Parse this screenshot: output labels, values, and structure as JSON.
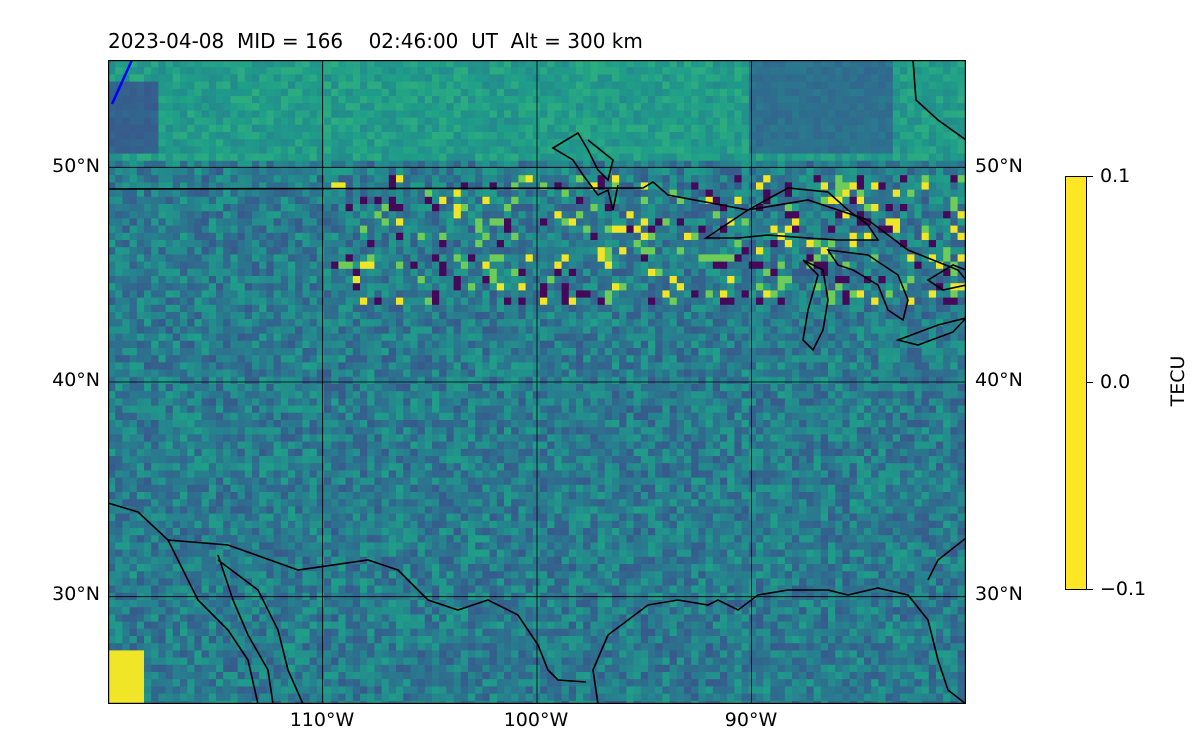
{
  "title": "2023-04-08  MID = 166    02:46:00  UT  Alt = 300 km",
  "map": {
    "lon_range": [
      -120,
      -80
    ],
    "lat_range": [
      25,
      55
    ],
    "lat_labels": [
      "50°N",
      "40°N",
      "30°N"
    ],
    "lon_labels": [
      "110°W",
      "100°W",
      "90°W"
    ],
    "gridlines": true
  },
  "colorbar": {
    "label": "TECU",
    "colormap": "viridis",
    "ticks": [
      "0.1",
      "0.0",
      "−0.1"
    ],
    "vmin": -0.1,
    "vmax": 0.1
  },
  "colors": {
    "frame": "#000000",
    "coastline": "#000000",
    "track": "#0000ff",
    "field_mean": "#2c728e"
  }
}
